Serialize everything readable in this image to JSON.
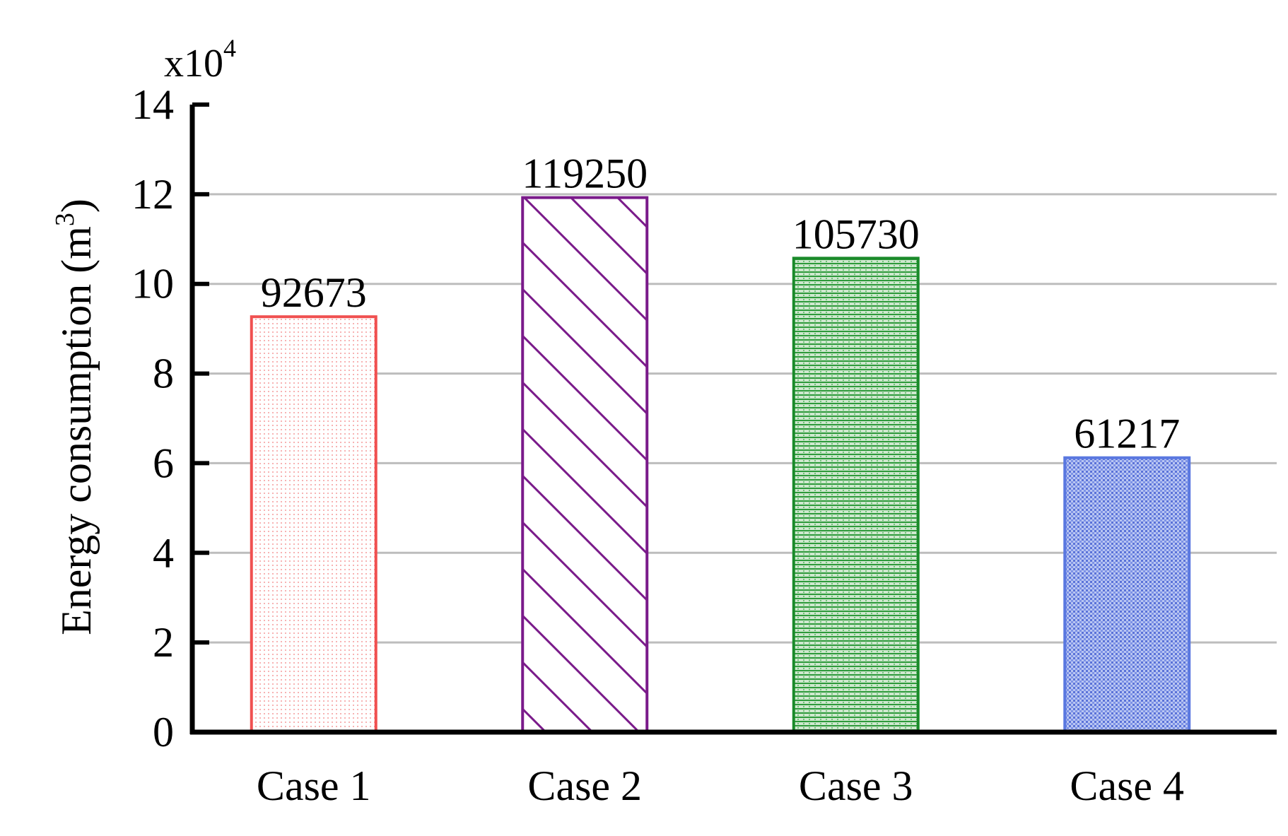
{
  "chart_data": {
    "type": "bar",
    "categories": [
      "Case 1",
      "Case 2",
      "Case 3",
      "Case 4"
    ],
    "values": [
      92673,
      119250,
      105730,
      61217
    ],
    "data_labels": [
      "92673",
      "119250",
      "105730",
      "61217"
    ],
    "title": "",
    "xlabel": "",
    "ylabel": "Energy consumption (m",
    "ylabel_superscript": "3",
    "ylabel_suffix": ")",
    "y_scale_label": "x10",
    "y_scale_superscript": "4",
    "ylim": [
      0,
      14
    ],
    "yticks": [
      0,
      2,
      4,
      6,
      8,
      10,
      12,
      14
    ],
    "y_multiplier": 10000,
    "grid": true,
    "bar_colors": [
      "#f05050",
      "#7a1a8a",
      "#1a8a2a",
      "#5a78e0"
    ],
    "bar_fills": [
      "dots",
      "diagonal-hatch",
      "horizontal-lines",
      "crosshatch"
    ]
  }
}
